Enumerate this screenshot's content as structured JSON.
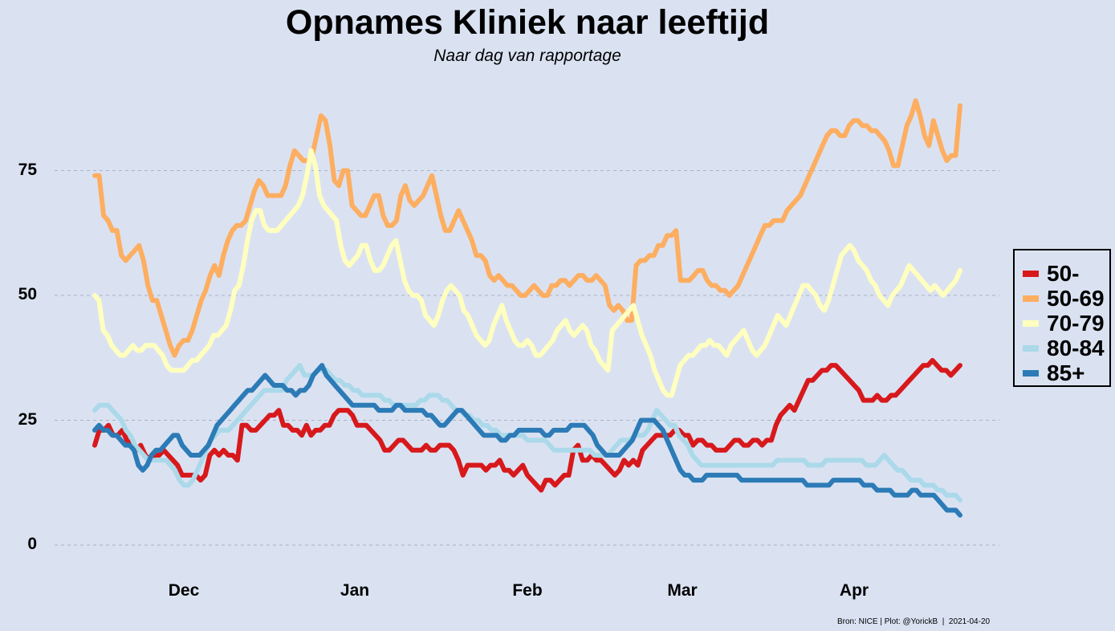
{
  "chart_data": {
    "type": "line",
    "title": "Opnames Kliniek naar leeftijd",
    "subtitle": "Naar dag van rapportage",
    "caption": "Bron: NICE | Plot: @YorickB  |  2021-04-20",
    "x_start": "2020-11-16",
    "x_end": "2021-04-19",
    "xlim": [
      "2020-11-16",
      "2021-04-19"
    ],
    "ylim": [
      0,
      90
    ],
    "yticks": [
      0,
      25,
      50,
      75
    ],
    "ytick_labels": [
      "0",
      "25",
      "50",
      "75"
    ],
    "xticks": [
      {
        "date": "2020-12-01",
        "label": "Dec"
      },
      {
        "date": "2021-01-01",
        "label": "Jan"
      },
      {
        "date": "2021-02-01",
        "label": "Feb"
      },
      {
        "date": "2021-03-01",
        "label": "Mar"
      },
      {
        "date": "2021-04-01",
        "label": "Apr"
      }
    ],
    "grid": "horizontal dashed",
    "legend_position": "right",
    "series": [
      {
        "name": "50-",
        "color": "#d7191c",
        "values": [
          20,
          23,
          23,
          24,
          22,
          22,
          23,
          21,
          20,
          19,
          20,
          18,
          17,
          18,
          18,
          19,
          18,
          17,
          16,
          14,
          14,
          14,
          14,
          13,
          14,
          18,
          19,
          18,
          19,
          18,
          18,
          17,
          24,
          24,
          23,
          23,
          24,
          25,
          26,
          26,
          27,
          24,
          24,
          23,
          23,
          22,
          24,
          22,
          23,
          23,
          24,
          24,
          26,
          27,
          27,
          27,
          26,
          24,
          24,
          24,
          23,
          22,
          21,
          19,
          19,
          20,
          21,
          21,
          20,
          19,
          19,
          19,
          20,
          19,
          19,
          20,
          20,
          20,
          19,
          17,
          14,
          16,
          16,
          16,
          16,
          15,
          16,
          16,
          17,
          15,
          15,
          14,
          15,
          16,
          14,
          13,
          12,
          11,
          13,
          13,
          12,
          13,
          14,
          14,
          19,
          20,
          17,
          17,
          18,
          17,
          17,
          16,
          15,
          14,
          15,
          17,
          16,
          17,
          16,
          19,
          20,
          21,
          22,
          22,
          22,
          22,
          23,
          23,
          22,
          22,
          20,
          21,
          21,
          20,
          20,
          19,
          19,
          19,
          20,
          21,
          21,
          20,
          20,
          21,
          21,
          20,
          21,
          21,
          24,
          26,
          27,
          28,
          27,
          29,
          31,
          33,
          33,
          34,
          35,
          35,
          36,
          36,
          35,
          34,
          33,
          32,
          31,
          29,
          29,
          29,
          30,
          29,
          29,
          30,
          30,
          31,
          32,
          33,
          34,
          35,
          36,
          36,
          37,
          36,
          35,
          35,
          34,
          35,
          36
        ]
      },
      {
        "name": "50-69",
        "color": "#fdae61",
        "values": [
          74,
          74,
          66,
          65,
          63,
          63,
          58,
          57,
          58,
          59,
          60,
          57,
          52,
          49,
          49,
          46,
          43,
          40,
          38,
          40,
          41,
          41,
          43,
          46,
          49,
          51,
          54,
          56,
          54,
          58,
          61,
          63,
          64,
          64,
          65,
          68,
          71,
          73,
          72,
          70,
          70,
          70,
          70,
          72,
          76,
          79,
          78,
          77,
          77,
          78,
          82,
          86,
          85,
          80,
          73,
          72,
          75,
          75,
          68,
          67,
          66,
          66,
          68,
          70,
          70,
          66,
          64,
          64,
          65,
          70,
          72,
          69,
          68,
          69,
          70,
          72,
          74,
          70,
          66,
          63,
          63,
          65,
          67,
          65,
          63,
          61,
          58,
          58,
          57,
          54,
          53,
          54,
          53,
          52,
          52,
          51,
          50,
          50,
          51,
          52,
          51,
          50,
          50,
          52,
          52,
          53,
          53,
          52,
          53,
          54,
          54,
          53,
          53,
          54,
          53,
          52,
          48,
          47,
          48,
          47,
          45,
          45,
          56,
          57,
          57,
          58,
          58,
          60,
          60,
          62,
          62,
          63,
          53,
          53,
          53,
          54,
          55,
          55,
          53,
          52,
          52,
          51,
          51,
          50,
          51,
          52,
          54,
          56,
          58,
          60,
          62,
          64,
          64,
          65,
          65,
          65,
          67,
          68,
          69,
          70,
          72,
          74,
          76,
          78,
          80,
          82,
          83,
          83,
          82,
          82,
          84,
          85,
          85,
          84,
          84,
          83,
          83,
          82,
          81,
          79,
          76,
          76,
          80,
          84,
          86,
          89,
          86,
          82,
          80,
          85,
          82,
          79,
          77,
          78,
          78,
          88
        ]
      },
      {
        "name": "70-79",
        "color": "#ffffbf",
        "values": [
          50,
          49,
          43,
          42,
          40,
          39,
          38,
          38,
          39,
          40,
          39,
          39,
          40,
          40,
          40,
          39,
          38,
          36,
          35,
          35,
          35,
          35,
          36,
          37,
          37,
          38,
          39,
          40,
          42,
          42,
          43,
          44,
          47,
          51,
          52,
          56,
          61,
          65,
          67,
          67,
          64,
          63,
          63,
          63,
          64,
          65,
          66,
          67,
          68,
          70,
          74,
          79,
          76,
          70,
          68,
          67,
          66,
          65,
          60,
          57,
          56,
          57,
          58,
          60,
          60,
          57,
          55,
          55,
          56,
          58,
          60,
          61,
          57,
          53,
          51,
          50,
          50,
          49,
          46,
          45,
          44,
          46,
          49,
          51,
          52,
          51,
          50,
          47,
          46,
          44,
          42,
          41,
          40,
          41,
          44,
          46,
          48,
          45,
          43,
          41,
          40,
          40,
          41,
          40,
          38,
          38,
          39,
          40,
          41,
          43,
          44,
          45,
          43,
          42,
          43,
          44,
          43,
          40,
          39,
          37,
          36,
          35,
          43,
          44,
          45,
          46,
          47,
          48,
          45,
          42,
          40,
          38,
          35,
          33,
          31,
          30,
          30,
          33,
          36,
          37,
          38,
          38,
          39,
          40,
          40,
          41,
          40,
          40,
          39,
          38,
          40,
          41,
          42,
          43,
          41,
          39,
          38,
          39,
          40,
          42,
          44,
          46,
          45,
          44,
          46,
          48,
          50,
          52,
          52,
          51,
          50,
          48,
          47,
          49,
          52,
          55,
          58,
          59,
          60,
          59,
          57,
          56,
          55,
          53,
          52,
          50,
          49,
          48,
          50,
          51,
          52,
          54,
          56,
          55,
          54,
          53,
          52,
          51,
          52,
          51,
          50,
          51,
          52,
          53,
          55
        ]
      },
      {
        "name": "80-84",
        "color": "#abd9e9",
        "values": [
          27,
          28,
          28,
          28,
          27,
          26,
          25,
          23,
          22,
          20,
          19,
          18,
          17,
          17,
          17,
          17,
          17,
          16,
          15,
          13,
          12,
          12,
          13,
          15,
          17,
          19,
          21,
          22,
          23,
          23,
          23,
          24,
          25,
          26,
          27,
          28,
          29,
          30,
          31,
          31,
          31,
          31,
          31,
          33,
          34,
          35,
          36,
          34,
          34,
          34,
          35,
          35,
          35,
          34,
          33,
          33,
          32,
          32,
          31,
          31,
          30,
          30,
          30,
          30,
          30,
          29,
          29,
          28,
          28,
          28,
          28,
          28,
          28,
          29,
          29,
          30,
          30,
          30,
          29,
          29,
          28,
          27,
          27,
          26,
          26,
          25,
          25,
          24,
          24,
          23,
          23,
          22,
          22,
          22,
          22,
          22,
          22,
          21,
          21,
          21,
          21,
          21,
          20,
          19,
          19,
          19,
          19,
          19,
          19,
          19,
          19,
          19,
          18,
          18,
          18,
          18,
          19,
          20,
          21,
          21,
          21,
          22,
          22,
          22,
          23,
          25,
          27,
          26,
          25,
          24,
          24,
          22,
          21,
          20,
          18,
          17,
          16,
          16,
          16,
          16,
          16,
          16,
          16,
          16,
          16,
          16,
          16,
          16,
          16,
          16,
          16,
          16,
          16,
          17,
          17,
          17,
          17,
          17,
          17,
          17,
          16,
          16,
          16,
          16,
          17,
          17,
          17,
          17,
          17,
          17,
          17,
          17,
          17,
          16,
          16,
          16,
          17,
          18,
          17,
          16,
          15,
          15,
          14,
          13,
          13,
          13,
          12,
          12,
          12,
          11,
          11,
          10,
          10,
          10,
          9
        ]
      },
      {
        "name": "85+",
        "color": "#2c7bb6",
        "values": [
          23,
          24,
          23,
          23,
          22,
          22,
          21,
          20,
          20,
          19,
          16,
          15,
          16,
          18,
          19,
          19,
          20,
          21,
          22,
          22,
          20,
          19,
          18,
          18,
          18,
          19,
          20,
          22,
          24,
          25,
          26,
          27,
          28,
          29,
          30,
          31,
          31,
          32,
          33,
          34,
          33,
          32,
          32,
          32,
          31,
          31,
          30,
          31,
          31,
          32,
          34,
          35,
          36,
          34,
          33,
          32,
          31,
          30,
          29,
          28,
          28,
          28,
          28,
          28,
          28,
          27,
          27,
          27,
          27,
          28,
          28,
          27,
          27,
          27,
          27,
          27,
          26,
          26,
          25,
          24,
          24,
          25,
          26,
          27,
          27,
          26,
          25,
          24,
          23,
          22,
          22,
          22,
          22,
          21,
          21,
          22,
          22,
          23,
          23,
          23,
          23,
          23,
          23,
          22,
          22,
          23,
          23,
          23,
          23,
          24,
          24,
          24,
          24,
          23,
          22,
          20,
          19,
          18,
          18,
          18,
          18,
          19,
          20,
          21,
          23,
          25,
          25,
          25,
          25,
          24,
          23,
          21,
          19,
          17,
          15,
          14,
          14,
          13,
          13,
          13,
          14,
          14,
          14,
          14,
          14,
          14,
          14,
          14,
          13,
          13,
          13,
          13,
          13,
          13,
          13,
          13,
          13,
          13,
          13,
          13,
          13,
          13,
          13,
          12,
          12,
          12,
          12,
          12,
          12,
          13,
          13,
          13,
          13,
          13,
          13,
          13,
          12,
          12,
          12,
          11,
          11,
          11,
          11,
          10,
          10,
          10,
          10,
          11,
          11,
          10,
          10,
          10,
          10,
          9,
          8,
          7,
          7,
          7,
          6
        ]
      }
    ]
  }
}
